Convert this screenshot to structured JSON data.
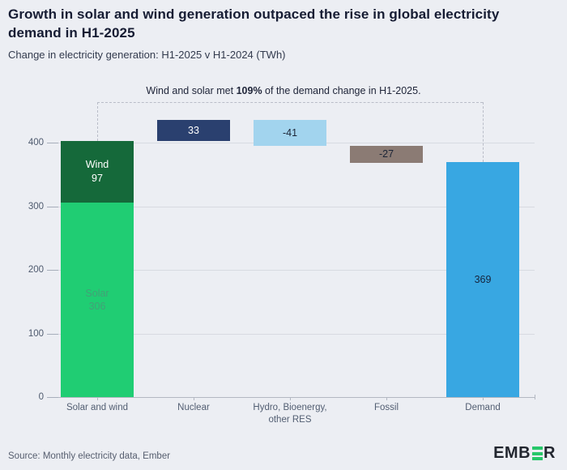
{
  "header": {
    "title": "Growth in solar and wind generation outpaced the rise in global electricity demand in H1-2025",
    "subtitle": "Change in electricity generation: H1-2025 v H1-2024 (TWh)"
  },
  "annotation": {
    "prefix": "Wind and solar met ",
    "bold": "109%",
    "suffix": " of the demand change in H1-2025."
  },
  "chart_data": {
    "type": "waterfall",
    "unit": "TWh",
    "title": "Change in electricity generation: H1-2025 v H1-2024 (TWh)",
    "y_ticks": [
      0,
      100,
      200,
      300,
      400
    ],
    "ylim": [
      0,
      436
    ],
    "grid": "horizontal",
    "categories": [
      {
        "label_lines": [
          "Solar and wind"
        ],
        "parts": [
          {
            "name": "Solar",
            "from": 0,
            "to": 306,
            "value": 306,
            "color": "#20cd73",
            "text_color": "#43a077",
            "label_lines": [
              "Solar",
              "306"
            ]
          },
          {
            "name": "Wind",
            "from": 306,
            "to": 403,
            "value": 97,
            "color": "#15693a",
            "text_color": "#ffffff",
            "label_lines": [
              "Wind",
              "97"
            ]
          }
        ]
      },
      {
        "label_lines": [
          "Nuclear"
        ],
        "parts": [
          {
            "name": "Nuclear",
            "from": 403,
            "to": 436,
            "value": 33,
            "color": "#2a406f",
            "text_color": "#ffffff",
            "label_lines": [
              "33"
            ]
          }
        ]
      },
      {
        "label_lines": [
          "Hydro, Bioenergy,",
          "other RES"
        ],
        "parts": [
          {
            "name": "Hydro-Bioenergy-other-RES",
            "from": 436,
            "to": 395,
            "value": -41,
            "color": "#a2d4ee",
            "text_color": "#1b2436",
            "label_lines": [
              "-41"
            ]
          }
        ]
      },
      {
        "label_lines": [
          "Fossil"
        ],
        "parts": [
          {
            "name": "Fossil",
            "from": 395,
            "to": 368,
            "value": -27,
            "color": "#8b7b74",
            "text_color": "#1b2436",
            "label_lines": [
              "-27"
            ]
          }
        ]
      },
      {
        "label_lines": [
          "Demand"
        ],
        "parts": [
          {
            "name": "Demand",
            "from": 0,
            "to": 369,
            "value": 369,
            "color": "#38a7e2",
            "text_color": "#16243c",
            "label_lines": [
              "369"
            ]
          }
        ]
      }
    ],
    "bracket": {
      "from_category": 0,
      "to_category": 4
    }
  },
  "footer": {
    "source": "Source: Monthly electricity data, Ember",
    "logo": {
      "part1": "EMB",
      "part2": "R",
      "bars_color": "#27c76a"
    }
  }
}
